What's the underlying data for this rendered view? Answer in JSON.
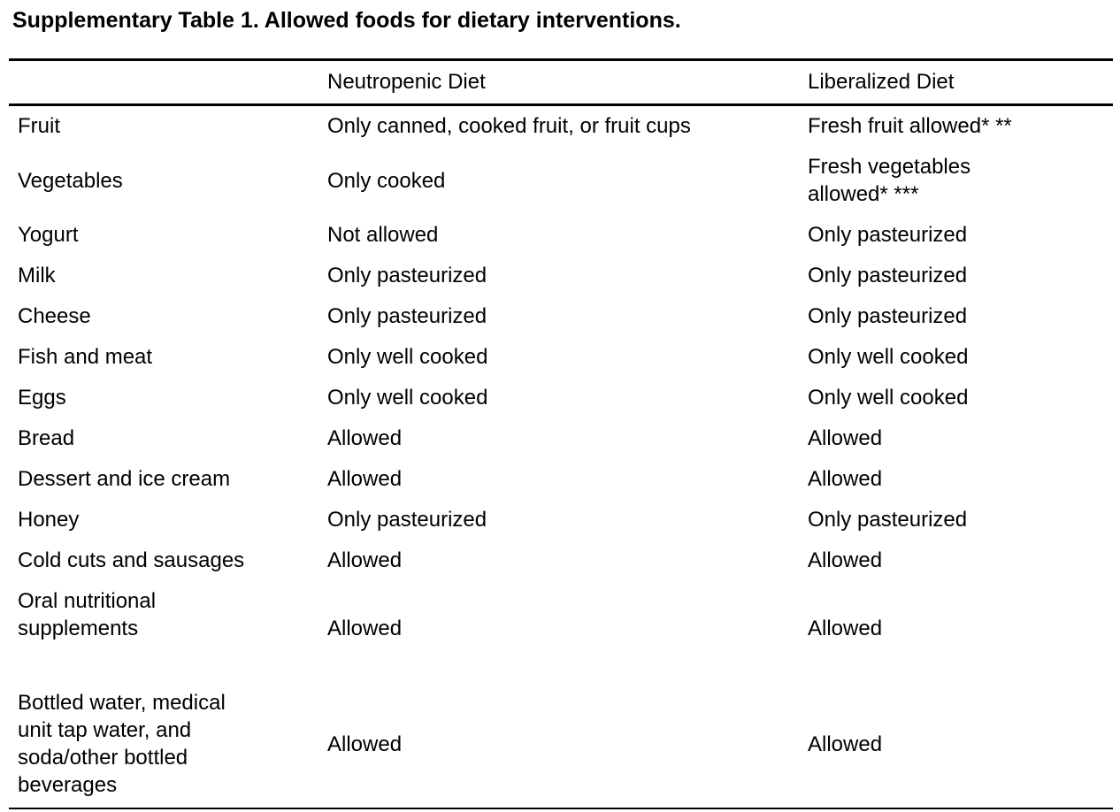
{
  "title": "Supplementary Table 1. Allowed foods for dietary interventions.",
  "colors": {
    "text": "#000000",
    "background": "#ffffff",
    "rule": "#000000"
  },
  "table": {
    "columns": [
      "",
      "Neutropenic Diet",
      "Liberalized Diet"
    ],
    "rows": [
      {
        "food": "Fruit",
        "neutropenic": "Only canned, cooked fruit, or fruit cups",
        "liberalized": "Fresh fruit allowed* **"
      },
      {
        "food": "Vegetables",
        "neutropenic": "Only cooked",
        "liberalized": "Fresh vegetables\nallowed* ***"
      },
      {
        "food": "Yogurt",
        "neutropenic": "Not allowed",
        "liberalized": "Only pasteurized"
      },
      {
        "food": "Milk",
        "neutropenic": "Only pasteurized",
        "liberalized": "Only pasteurized"
      },
      {
        "food": "Cheese",
        "neutropenic": "Only pasteurized",
        "liberalized": "Only pasteurized"
      },
      {
        "food": "Fish and meat",
        "neutropenic": "Only well cooked",
        "liberalized": "Only well cooked"
      },
      {
        "food": "Eggs",
        "neutropenic": "Only well cooked",
        "liberalized": "Only well cooked"
      },
      {
        "food": "Bread",
        "neutropenic": "Allowed",
        "liberalized": "Allowed"
      },
      {
        "food": "Dessert and ice cream",
        "neutropenic": "Allowed",
        "liberalized": "Allowed"
      },
      {
        "food": "Honey",
        "neutropenic": "Only pasteurized",
        "liberalized": "Only pasteurized"
      },
      {
        "food": "Cold cuts and sausages",
        "neutropenic": "Allowed",
        "liberalized": "Allowed"
      },
      {
        "food": "Oral nutritional\nsupplements",
        "neutropenic": "Allowed",
        "liberalized": "Allowed"
      },
      {
        "food": "Bottled water, medical\nunit tap water, and\nsoda/other bottled\nbeverages",
        "neutropenic": "Allowed",
        "liberalized": "Allowed"
      }
    ]
  }
}
